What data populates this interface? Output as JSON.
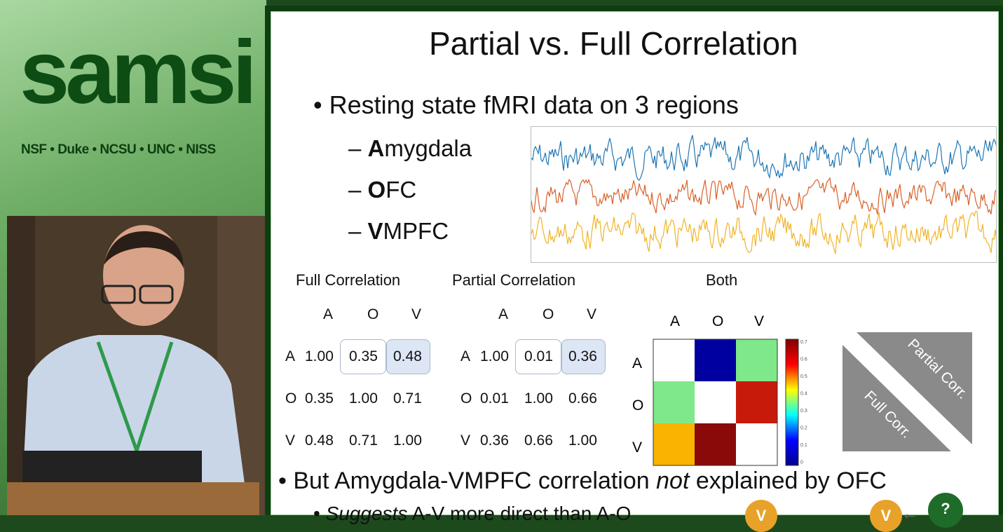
{
  "sidebar": {
    "logo": "samsi",
    "partners": "NSF • Duke • NCSU • UNC • NISS"
  },
  "slide": {
    "title": "Partial vs. Full Correlation",
    "bullet1": "Resting state fMRI data on 3 regions",
    "regions": [
      {
        "initial": "A",
        "rest": "mygdala"
      },
      {
        "initial": "O",
        "rest": "FC"
      },
      {
        "initial": "V",
        "rest": "MPFC"
      }
    ],
    "series_colors": [
      "#1f77b4",
      "#d9622b",
      "#f0b42a"
    ],
    "full": {
      "heading": "Full Correlation",
      "cols": [
        "A",
        "O",
        "V"
      ],
      "rows": [
        {
          "label": "A",
          "values": [
            "1.00",
            "0.35",
            "0.48"
          ]
        },
        {
          "label": "O",
          "values": [
            "0.35",
            "1.00",
            "0.71"
          ]
        },
        {
          "label": "V",
          "values": [
            "0.48",
            "0.71",
            "1.00"
          ]
        }
      ]
    },
    "partial": {
      "heading": "Partial  Correlation",
      "cols": [
        "A",
        "O",
        "V"
      ],
      "rows": [
        {
          "label": "A",
          "values": [
            "1.00",
            "0.01",
            "0.36"
          ]
        },
        {
          "label": "O",
          "values": [
            "0.01",
            "1.00",
            "0.66"
          ]
        },
        {
          "label": "V",
          "values": [
            "0.36",
            "0.66",
            "1.00"
          ]
        }
      ]
    },
    "both": {
      "heading": "Both",
      "cols": [
        "A",
        "O",
        "V"
      ],
      "rows": [
        "A",
        "O",
        "V"
      ],
      "colors": [
        [
          "#ffffff",
          "#0000a0",
          "#7fe88a"
        ],
        [
          "#7fe88a",
          "#ffffff",
          "#c81a0a"
        ],
        [
          "#f8b400",
          "#8a0a0a",
          "#ffffff"
        ]
      ],
      "colorbar_ticks": [
        "0.7",
        "0.6",
        "0.5",
        "0.4",
        "0.3",
        "0.2",
        "0.1",
        "0"
      ]
    },
    "legend": {
      "partial": "Partial Corr.",
      "full": "Full Corr."
    },
    "bullet2_pre": "But Amygdala-VMPFC correlation ",
    "bullet2_em": "not",
    "bullet2_post": " explained by OFC",
    "sub_em": "Suggests",
    "sub_rest": " A-V more direct than A-O",
    "nodes": [
      "V",
      "V",
      "?"
    ]
  }
}
